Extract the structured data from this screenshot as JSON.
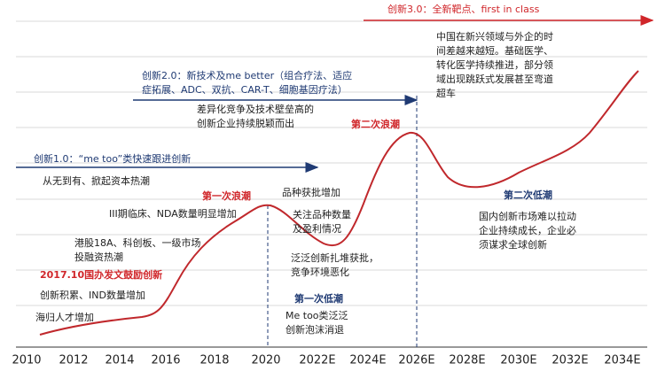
{
  "axis": {
    "labels": [
      "2010",
      "2012",
      "2014",
      "2016",
      "2018",
      "2020",
      "2022E",
      "2024E",
      "2026E",
      "2028E",
      "2030E",
      "2032E",
      "2034E"
    ]
  },
  "phases": [
    {
      "lines": [
        "创新1.0：“me too”类快速跟进创新"
      ]
    },
    {
      "lines": [
        "创新2.0：新技术及me better（组合疗法、适应",
        "症拓展、ADC、双抗、CAR-T、细胞基因疗法）"
      ]
    },
    {
      "lines": [
        "创新3.0：全新靶点、first in class"
      ]
    }
  ],
  "waves": [
    "第一次浪潮",
    "第二次浪潮"
  ],
  "lows": [
    "第一次低潮",
    "第二次低潮"
  ],
  "policy": "2017.10国办发文鼓励创新",
  "notes": [
    {
      "lines": [
        "海归人才增加"
      ]
    },
    {
      "lines": [
        "创新积累、IND数量增加"
      ]
    },
    {
      "lines": [
        "港股18A、科创板、一级市场",
        "投融资热潮"
      ]
    },
    {
      "lines": [
        "III期临床、NDA数量明显增加"
      ]
    },
    {
      "lines": [
        "从无到有、掀起资本热潮"
      ]
    },
    {
      "lines": [
        "品种获批增加"
      ]
    },
    {
      "lines": [
        "关注品种数量",
        "及盈利情况"
      ]
    },
    {
      "lines": [
        "泛泛创新扎堆获批，",
        "竞争环境恶化"
      ]
    },
    {
      "lines": [
        "Me too类泛泛",
        "创新泡沫消退"
      ]
    },
    {
      "lines": [
        "差异化竞争及技术壁垒高的",
        "创新企业持续脱颖而出"
      ]
    },
    {
      "lines": [
        "中国在新兴领域与外企的时",
        "间差越来越短。基础医学、",
        "转化医学持续推进，部分领",
        "域出现跳跃式发展甚至弯道",
        "超车"
      ]
    },
    {
      "lines": [
        "国内创新市场难以拉动",
        "企业持续成长，企业必",
        "须谋求全球创新"
      ]
    }
  ]
}
